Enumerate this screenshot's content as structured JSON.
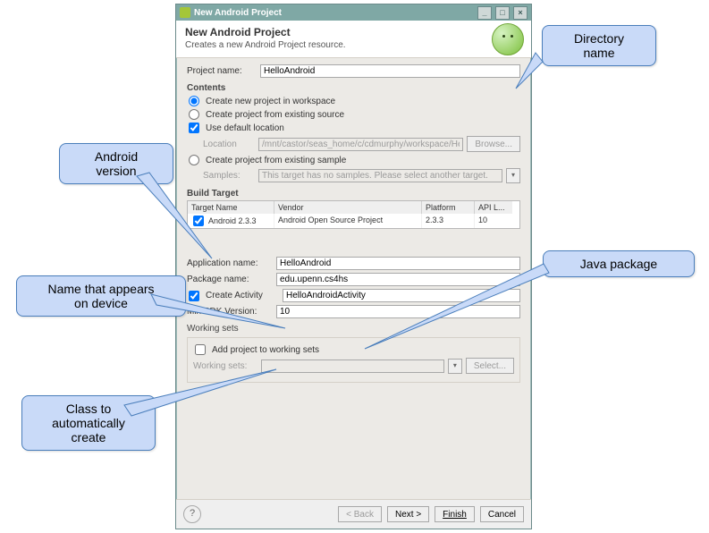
{
  "callouts": {
    "directory": "Directory\nname",
    "android_ver": "Android\nversion",
    "java_pkg": "Java package",
    "dev_name": "Name that appears\non device",
    "class_auto": "Class to\nautomatically\ncreate"
  },
  "window": {
    "title": "New Android Project",
    "banner_title": "New Android Project",
    "banner_sub": "Creates a new Android Project resource."
  },
  "project": {
    "name_label": "Project name:",
    "name_value": "HelloAndroid"
  },
  "contents": {
    "section": "Contents",
    "opt_new": "Create new project in workspace",
    "opt_exist": "Create project from existing source",
    "use_default": "Use default location",
    "location_label": "Location",
    "location_value": "/mnt/castor/seas_home/c/cdmurphy/workspace/He",
    "browse": "Browse...",
    "opt_sample": "Create project from existing sample",
    "samples_label": "Samples:",
    "samples_value": "This target has no samples. Please select another target."
  },
  "build": {
    "section": "Build Target",
    "cols": {
      "name": "Target Name",
      "vendor": "Vendor",
      "platform": "Platform",
      "api": "API L..."
    },
    "row": {
      "name": "Android 2.3.3",
      "vendor": "Android Open Source Project",
      "platform": "2.3.3",
      "api": "10"
    }
  },
  "app": {
    "app_name_label": "Application name:",
    "app_name_value": "HelloAndroid",
    "pkg_label": "Package name:",
    "pkg_value": "edu.upenn.cs4hs",
    "create_activity": "Create Activity",
    "activity_value": "HelloAndroidActivity",
    "minsdk_label": "Min SDK Version:",
    "minsdk_value": "10"
  },
  "working_sets": {
    "section": "Working sets",
    "add_label": "Add project to working sets",
    "ws_label": "Working sets:",
    "select_btn": "Select..."
  },
  "footer": {
    "back": "< Back",
    "next": "Next >",
    "finish": "Finish",
    "cancel": "Cancel"
  },
  "style": {
    "callout_bg": "#c9daf8",
    "callout_border": "#4a7ebb",
    "dialog_bg": "#eceae6",
    "titlebar_bg": "#7fa8a5"
  }
}
